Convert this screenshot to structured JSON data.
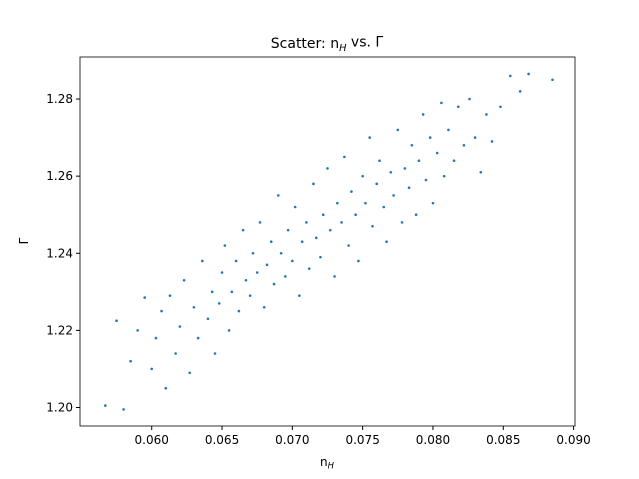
{
  "chart_data": {
    "type": "scatter",
    "title": "Scatter: n$_H$ vs. Γ",
    "xlabel": "n$_H$",
    "ylabel": "Γ",
    "color": "#1f77b4",
    "xlim": [
      0.0549,
      0.0901
    ],
    "ylim": [
      1.1952,
      1.2909
    ],
    "xticks": [
      {
        "value": 0.06,
        "label": "0.060"
      },
      {
        "value": 0.065,
        "label": "0.065"
      },
      {
        "value": 0.07,
        "label": "0.070"
      },
      {
        "value": 0.075,
        "label": "0.075"
      },
      {
        "value": 0.08,
        "label": "0.080"
      },
      {
        "value": 0.085,
        "label": "0.085"
      },
      {
        "value": 0.09,
        "label": "0.090"
      }
    ],
    "yticks": [
      {
        "value": 1.2,
        "label": "1.20"
      },
      {
        "value": 1.22,
        "label": "1.22"
      },
      {
        "value": 1.24,
        "label": "1.24"
      },
      {
        "value": 1.26,
        "label": "1.26"
      },
      {
        "value": 1.28,
        "label": "1.28"
      }
    ],
    "grid": false,
    "x": [
      0.0567,
      0.0575,
      0.058,
      0.0585,
      0.059,
      0.0595,
      0.06,
      0.0603,
      0.0607,
      0.061,
      0.0613,
      0.0617,
      0.062,
      0.0623,
      0.0627,
      0.063,
      0.0633,
      0.0636,
      0.064,
      0.0643,
      0.0645,
      0.0648,
      0.065,
      0.0652,
      0.0655,
      0.0657,
      0.066,
      0.0662,
      0.0665,
      0.0667,
      0.067,
      0.0672,
      0.0675,
      0.0677,
      0.068,
      0.0682,
      0.0685,
      0.0687,
      0.069,
      0.0692,
      0.0695,
      0.0697,
      0.07,
      0.0702,
      0.0705,
      0.0707,
      0.071,
      0.0712,
      0.0715,
      0.0717,
      0.072,
      0.0722,
      0.0725,
      0.0727,
      0.073,
      0.0732,
      0.0735,
      0.0737,
      0.074,
      0.0742,
      0.0745,
      0.0747,
      0.075,
      0.0752,
      0.0755,
      0.0757,
      0.076,
      0.0762,
      0.0765,
      0.0767,
      0.077,
      0.0772,
      0.0775,
      0.0778,
      0.078,
      0.0783,
      0.0785,
      0.0788,
      0.079,
      0.0793,
      0.0795,
      0.0798,
      0.08,
      0.0803,
      0.0806,
      0.0808,
      0.0811,
      0.0815,
      0.0818,
      0.0822,
      0.0826,
      0.083,
      0.0834,
      0.0838,
      0.0842,
      0.0848,
      0.0855,
      0.0862,
      0.0868,
      0.0885
    ],
    "values": [
      1.2005,
      1.2225,
      1.1995,
      1.212,
      1.22,
      1.2285,
      1.21,
      1.218,
      1.225,
      1.205,
      1.229,
      1.214,
      1.221,
      1.233,
      1.209,
      1.226,
      1.218,
      1.238,
      1.223,
      1.23,
      1.214,
      1.227,
      1.235,
      1.242,
      1.22,
      1.23,
      1.238,
      1.225,
      1.246,
      1.233,
      1.229,
      1.24,
      1.235,
      1.248,
      1.226,
      1.237,
      1.243,
      1.232,
      1.255,
      1.24,
      1.234,
      1.246,
      1.238,
      1.252,
      1.229,
      1.243,
      1.248,
      1.236,
      1.258,
      1.244,
      1.239,
      1.25,
      1.262,
      1.246,
      1.234,
      1.253,
      1.248,
      1.265,
      1.242,
      1.256,
      1.25,
      1.238,
      1.26,
      1.253,
      1.27,
      1.247,
      1.258,
      1.264,
      1.252,
      1.243,
      1.261,
      1.255,
      1.272,
      1.248,
      1.262,
      1.257,
      1.268,
      1.25,
      1.264,
      1.276,
      1.259,
      1.27,
      1.253,
      1.266,
      1.279,
      1.26,
      1.272,
      1.264,
      1.278,
      1.268,
      1.28,
      1.27,
      1.261,
      1.276,
      1.269,
      1.278,
      1.286,
      1.282,
      1.2865,
      1.285
    ]
  }
}
